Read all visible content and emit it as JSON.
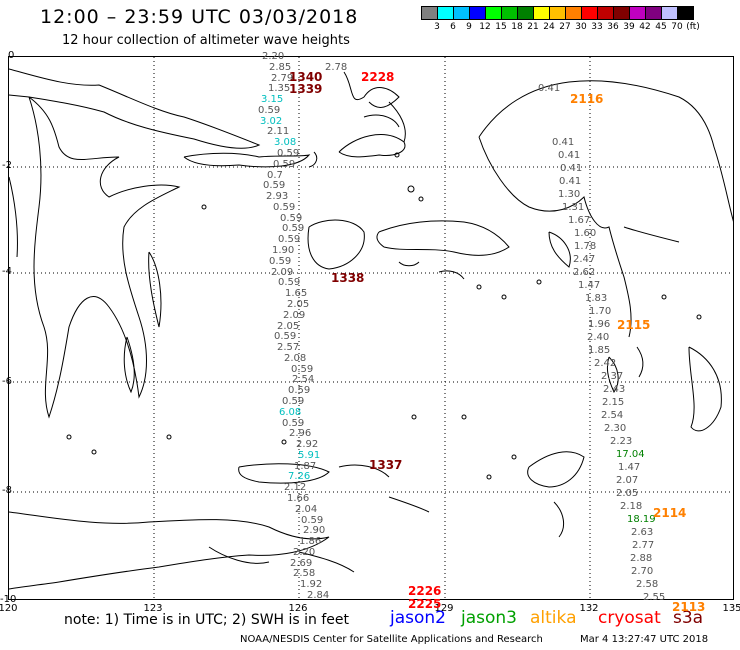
{
  "header": {
    "title": "12:00 – 23:59 UTC 03/03/2018",
    "subtitle": "12 hour collection of altimeter wave heights"
  },
  "colorbar": {
    "colors": [
      "#808080",
      "#00ffff",
      "#00bfff",
      "#0000ff",
      "#00ff00",
      "#00c000",
      "#008000",
      "#ffff00",
      "#ffc000",
      "#ff8000",
      "#ff0000",
      "#c00000",
      "#800000",
      "#c000c0",
      "#800080",
      "#c0c0ff",
      "#000000"
    ],
    "labels": [
      "3",
      "6",
      "9",
      "12",
      "15",
      "18",
      "21",
      "24",
      "27",
      "30",
      "33",
      "36",
      "39",
      "42",
      "45",
      "70",
      "(ft)"
    ]
  },
  "axes": {
    "y_labels": [
      "0",
      "-2",
      "-4",
      "-6",
      "-8",
      "-10"
    ],
    "x_labels": [
      "120",
      "123",
      "126",
      "129",
      "132",
      "135"
    ]
  },
  "passes": [
    {
      "id": "1340",
      "color": "#800000",
      "pos": [
        289,
        70
      ]
    },
    {
      "id": "1339",
      "color": "#800000",
      "pos": [
        289,
        82
      ]
    },
    {
      "id": "2228",
      "color": "#ff0000",
      "pos": [
        361,
        70
      ]
    },
    {
      "id": "2116",
      "color": "#ff8000",
      "pos": [
        570,
        92
      ]
    },
    {
      "id": "1338",
      "color": "#800000",
      "pos": [
        331,
        271
      ]
    },
    {
      "id": "2115",
      "color": "#ff8000",
      "pos": [
        617,
        318
      ]
    },
    {
      "id": "1337",
      "color": "#800000",
      "pos": [
        369,
        458
      ]
    },
    {
      "id": "2114",
      "color": "#ff8000",
      "pos": [
        653,
        506
      ]
    },
    {
      "id": "2226",
      "color": "#ff0000",
      "pos": [
        408,
        584
      ]
    },
    {
      "id": "2225",
      "color": "#ff0000",
      "pos": [
        408,
        597
      ]
    },
    {
      "id": "2113",
      "color": "#ff8000",
      "pos": [
        672,
        600
      ]
    }
  ],
  "swh_track1": [
    {
      "v": "2.20",
      "c": "#555555"
    },
    {
      "v": "2.85",
      "c": "#555555"
    },
    {
      "v": "2.79",
      "c": "#555555"
    },
    {
      "v": "1.35",
      "c": "#555555"
    },
    {
      "v": "3.15",
      "c": "#00bfbf"
    },
    {
      "v": "0.59",
      "c": "#555555"
    },
    {
      "v": "3.02",
      "c": "#00bfbf"
    },
    {
      "v": "2.11",
      "c": "#555555"
    },
    {
      "v": "3.08",
      "c": "#00bfbf"
    },
    {
      "v": "0.59",
      "c": "#555555"
    },
    {
      "v": "0.59",
      "c": "#555555"
    },
    {
      "v": "0.7",
      "c": "#555555"
    },
    {
      "v": "0.59",
      "c": "#555555"
    },
    {
      "v": "2.93",
      "c": "#555555"
    },
    {
      "v": "0.59",
      "c": "#555555"
    },
    {
      "v": "0.59",
      "c": "#555555"
    },
    {
      "v": "0.59",
      "c": "#555555"
    },
    {
      "v": "0.59",
      "c": "#555555"
    },
    {
      "v": "1.90",
      "c": "#555555"
    },
    {
      "v": "0.59",
      "c": "#555555"
    },
    {
      "v": "2.09",
      "c": "#555555"
    },
    {
      "v": "0.59",
      "c": "#555555"
    },
    {
      "v": "1.65",
      "c": "#555555"
    },
    {
      "v": "2.05",
      "c": "#555555"
    },
    {
      "v": "2.09",
      "c": "#555555"
    },
    {
      "v": "2.05",
      "c": "#555555"
    },
    {
      "v": "0.59",
      "c": "#555555"
    },
    {
      "v": "2.57",
      "c": "#555555"
    },
    {
      "v": "2.08",
      "c": "#555555"
    },
    {
      "v": "0.59",
      "c": "#555555"
    },
    {
      "v": "2.54",
      "c": "#555555"
    },
    {
      "v": "0.59",
      "c": "#555555"
    },
    {
      "v": "0.59",
      "c": "#555555"
    },
    {
      "v": "6.08",
      "c": "#00bfbf"
    },
    {
      "v": "0.59",
      "c": "#555555"
    },
    {
      "v": "2.96",
      "c": "#555555"
    },
    {
      "v": "2.92",
      "c": "#555555"
    },
    {
      "v": "5.91",
      "c": "#00bfbf"
    },
    {
      "v": "1.87",
      "c": "#555555"
    },
    {
      "v": "7.26",
      "c": "#00bfbf"
    },
    {
      "v": "2.12",
      "c": "#555555"
    },
    {
      "v": "1.66",
      "c": "#555555"
    },
    {
      "v": "2.04",
      "c": "#555555"
    },
    {
      "v": "0.59",
      "c": "#555555"
    },
    {
      "v": "2.90",
      "c": "#555555"
    },
    {
      "v": "1.86",
      "c": "#555555"
    },
    {
      "v": "2.20",
      "c": "#555555"
    },
    {
      "v": "2.69",
      "c": "#555555"
    },
    {
      "v": "2.58",
      "c": "#555555"
    },
    {
      "v": "1.92",
      "c": "#555555"
    },
    {
      "v": "2.84",
      "c": "#555555"
    }
  ],
  "swh_track2": [
    {
      "v": "0.41",
      "c": "#555555"
    },
    {
      "v": "0.41",
      "c": "#555555"
    },
    {
      "v": "0.41",
      "c": "#555555"
    },
    {
      "v": "0.41",
      "c": "#555555"
    },
    {
      "v": "1.30",
      "c": "#555555"
    },
    {
      "v": "1.31",
      "c": "#555555"
    },
    {
      "v": "1.67",
      "c": "#555555"
    },
    {
      "v": "1.60",
      "c": "#555555"
    },
    {
      "v": "1.78",
      "c": "#555555"
    },
    {
      "v": "2.47",
      "c": "#555555"
    },
    {
      "v": "2.62",
      "c": "#555555"
    },
    {
      "v": "1.47",
      "c": "#555555"
    },
    {
      "v": "1.83",
      "c": "#555555"
    },
    {
      "v": "1.70",
      "c": "#555555"
    },
    {
      "v": "1.96",
      "c": "#555555"
    },
    {
      "v": "2.40",
      "c": "#555555"
    },
    {
      "v": "1.85",
      "c": "#555555"
    },
    {
      "v": "2.42",
      "c": "#555555"
    },
    {
      "v": "2.37",
      "c": "#555555"
    },
    {
      "v": "2.43",
      "c": "#555555"
    },
    {
      "v": "2.15",
      "c": "#555555"
    },
    {
      "v": "2.54",
      "c": "#555555"
    },
    {
      "v": "2.30",
      "c": "#555555"
    },
    {
      "v": "2.23",
      "c": "#555555"
    },
    {
      "v": "17.04",
      "c": "#008000"
    },
    {
      "v": "1.47",
      "c": "#555555"
    },
    {
      "v": "2.07",
      "c": "#555555"
    },
    {
      "v": "2.05",
      "c": "#555555"
    },
    {
      "v": "2.18",
      "c": "#555555"
    },
    {
      "v": "18.19",
      "c": "#008000"
    },
    {
      "v": "2.63",
      "c": "#555555"
    },
    {
      "v": "2.77",
      "c": "#555555"
    },
    {
      "v": "2.88",
      "c": "#555555"
    },
    {
      "v": "2.70",
      "c": "#555555"
    },
    {
      "v": "2.58",
      "c": "#555555"
    },
    {
      "v": "2.55",
      "c": "#555555"
    }
  ],
  "swh_extra": [
    {
      "v": "2.78",
      "c": "#555555"
    },
    {
      "v": "0.41",
      "c": "#555555"
    }
  ],
  "footer": {
    "note": "note: 1) Time is in UTC; 2) SWH is in feet",
    "satellites": [
      {
        "name": "jason2",
        "color": "#0000ff"
      },
      {
        "name": "jason3",
        "color": "#00a000"
      },
      {
        "name": "altika",
        "color": "#ffa000"
      },
      {
        "name": "cryosat",
        "color": "#ff0000"
      },
      {
        "name": "s3a",
        "color": "#800000"
      }
    ],
    "credit": "NOAA/NESDIS Center for Satellite Applications and Research",
    "timestamp": "Mar  4 13:27:47 UTC 2018"
  }
}
